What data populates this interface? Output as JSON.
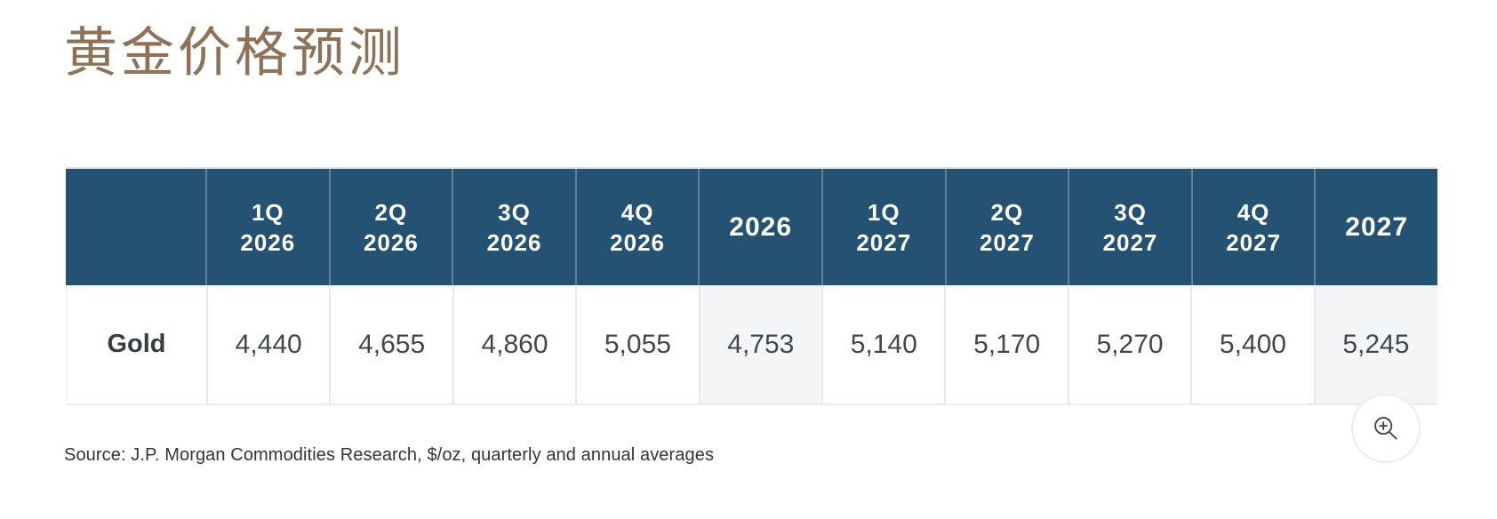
{
  "title": {
    "text": "黄金价格预测",
    "color": "#8E7257"
  },
  "table": {
    "header_bg": "#255172",
    "header_text_color": "#ffffff",
    "annual_column_bg": "#f4f5f7",
    "columns": [
      {
        "label": "1Q 2026",
        "line1": "1Q",
        "line2": "2026",
        "annual": false
      },
      {
        "label": "2Q 2026",
        "line1": "2Q",
        "line2": "2026",
        "annual": false
      },
      {
        "label": "3Q 2026",
        "line1": "3Q",
        "line2": "2026",
        "annual": false
      },
      {
        "label": "4Q 2026",
        "line1": "4Q",
        "line2": "2026",
        "annual": false
      },
      {
        "label": "2026",
        "line1": "2026",
        "line2": "",
        "annual": true
      },
      {
        "label": "1Q 2027",
        "line1": "1Q",
        "line2": "2027",
        "annual": false
      },
      {
        "label": "2Q 2027",
        "line1": "2Q",
        "line2": "2027",
        "annual": false
      },
      {
        "label": "3Q 2027",
        "line1": "3Q",
        "line2": "2027",
        "annual": false
      },
      {
        "label": "4Q 2027",
        "line1": "4Q",
        "line2": "2027",
        "annual": false
      },
      {
        "label": "2027",
        "line1": "2027",
        "line2": "",
        "annual": true
      }
    ],
    "rows": [
      {
        "label": "Gold",
        "values": [
          "4,440",
          "4,655",
          "4,860",
          "5,055",
          "4,753",
          "5,140",
          "5,170",
          "5,270",
          "5,400",
          "5,245"
        ]
      }
    ]
  },
  "source": {
    "text": "Source: J.P. Morgan Commodities Research, $/oz, quarterly and annual averages"
  },
  "zoom_button": {
    "icon": "zoom-in-icon"
  },
  "chart_data": {
    "type": "table",
    "title": "黄金价格预测",
    "columns": [
      "",
      "1Q 2026",
      "2Q 2026",
      "3Q 2026",
      "4Q 2026",
      "2026",
      "1Q 2027",
      "2Q 2027",
      "3Q 2027",
      "4Q 2027",
      "2027"
    ],
    "rows": [
      [
        "Gold",
        4440,
        4655,
        4860,
        5055,
        4753,
        5140,
        5170,
        5270,
        5400,
        5245
      ]
    ],
    "units": "$/oz",
    "annual_columns": [
      "2026",
      "2027"
    ],
    "source": "Source: J.P. Morgan Commodities Research, $/oz, quarterly and annual averages"
  }
}
